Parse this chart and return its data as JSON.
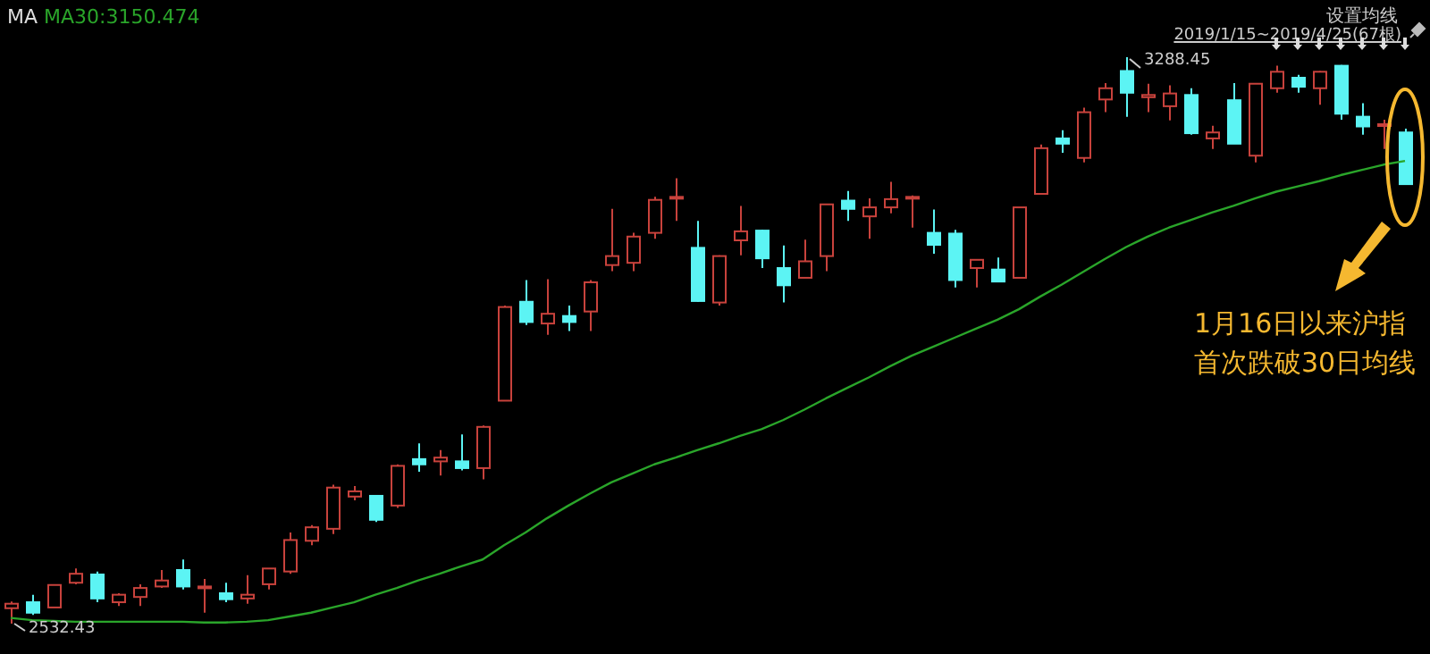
{
  "chart_data": {
    "type": "candlestick",
    "categories": [
      null,
      null,
      null,
      null,
      null,
      null,
      null,
      null,
      null,
      null,
      null,
      null,
      null,
      null,
      null,
      null,
      null,
      null,
      null,
      null,
      null,
      null,
      null,
      null,
      null,
      null,
      null,
      null,
      null,
      null,
      null,
      null,
      null,
      null,
      null,
      null,
      null,
      null,
      null,
      null,
      null,
      null,
      null,
      null,
      null,
      null,
      null,
      null,
      null,
      null,
      null,
      null,
      null,
      null,
      null,
      null,
      null,
      null,
      null,
      null,
      null,
      null,
      null,
      null,
      null,
      null
    ],
    "ohlc": [
      [
        2553,
        2562,
        2532.43,
        2559
      ],
      [
        2561,
        2571,
        2544,
        2547
      ],
      [
        2554,
        2585,
        2554,
        2584
      ],
      [
        2587,
        2606,
        2585,
        2599
      ],
      [
        2598,
        2602,
        2561,
        2566
      ],
      [
        2561,
        2573,
        2556,
        2571
      ],
      [
        2568,
        2585,
        2556,
        2580
      ],
      [
        2582,
        2604,
        2580,
        2590
      ],
      [
        2604,
        2618,
        2578,
        2582
      ],
      [
        2580,
        2592,
        2547,
        2582
      ],
      [
        2573,
        2587,
        2561,
        2565
      ],
      [
        2566,
        2597,
        2559,
        2571
      ],
      [
        2585,
        2606,
        2578,
        2606
      ],
      [
        2602,
        2654,
        2599,
        2644
      ],
      [
        2643,
        2664,
        2637,
        2661
      ],
      [
        2659,
        2718,
        2652,
        2714
      ],
      [
        2702,
        2716,
        2697,
        2709
      ],
      [
        2703,
        2704,
        2668,
        2671
      ],
      [
        2690,
        2745,
        2687,
        2743
      ],
      [
        2752,
        2773,
        2735,
        2745
      ],
      [
        2749,
        2764,
        2730,
        2754
      ],
      [
        2749,
        2785,
        2737,
        2740
      ],
      [
        2740,
        2797,
        2725,
        2795
      ],
      [
        2830,
        2957,
        2830,
        2955
      ],
      [
        2962,
        2991,
        2931,
        2935
      ],
      [
        2933,
        2992,
        2918,
        2946
      ],
      [
        2943,
        2957,
        2923,
        2935
      ],
      [
        2949,
        2991,
        2923,
        2988
      ],
      [
        3011,
        3086,
        3003,
        3023
      ],
      [
        3014,
        3054,
        3003,
        3049
      ],
      [
        3054,
        3102,
        3046,
        3098
      ],
      [
        3100,
        3127,
        3070,
        3102
      ],
      [
        3034,
        3070,
        2962,
        2963
      ],
      [
        2961,
        3024,
        2957,
        3023
      ],
      [
        3044,
        3090,
        3024,
        3056
      ],
      [
        3057,
        3058,
        3007,
        3020
      ],
      [
        3007,
        3037,
        2961,
        2984
      ],
      [
        2994,
        3045,
        2994,
        3016
      ],
      [
        3023,
        3092,
        3003,
        3092
      ],
      [
        3097,
        3110,
        3070,
        3086
      ],
      [
        3076,
        3100,
        3046,
        3088
      ],
      [
        3088,
        3122,
        3080,
        3099
      ],
      [
        3100,
        3104,
        3061,
        3102
      ],
      [
        3054,
        3085,
        3026,
        3038
      ],
      [
        3053,
        3058,
        2981,
        2991
      ],
      [
        3007,
        3019,
        2981,
        3018
      ],
      [
        3005,
        3021,
        2989,
        2989
      ],
      [
        2994,
        3088,
        2994,
        3088
      ],
      [
        3106,
        3172,
        3106,
        3167
      ],
      [
        3180,
        3191,
        3161,
        3173
      ],
      [
        3154,
        3221,
        3148,
        3215
      ],
      [
        3232,
        3254,
        3215,
        3247
      ],
      [
        3270,
        3288.45,
        3209,
        3241
      ],
      [
        3235,
        3253,
        3215,
        3238
      ],
      [
        3223,
        3251,
        3204,
        3240
      ],
      [
        3238,
        3247,
        3185,
        3187
      ],
      [
        3180,
        3197,
        3166,
        3188
      ],
      [
        3231,
        3254,
        3173,
        3173
      ],
      [
        3157,
        3254,
        3148,
        3253
      ],
      [
        3247,
        3277,
        3241,
        3269
      ],
      [
        3261,
        3265,
        3241,
        3249
      ],
      [
        3247,
        3270,
        3225,
        3269
      ],
      [
        3277,
        3278,
        3205,
        3213
      ],
      [
        3209,
        3227,
        3185,
        3196
      ],
      [
        3197,
        3205,
        3166,
        3199
      ],
      [
        3188,
        3193,
        3119,
        3119
      ]
    ],
    "colors": [
      "#c8423c",
      "#5cf4f4",
      "#c8423c",
      "#c8423c",
      "#5cf4f4",
      "#c8423c",
      "#c8423c",
      "#c8423c",
      "#5cf4f4",
      "#c8423c",
      "#5cf4f4",
      "#c8423c",
      "#c8423c",
      "#c8423c",
      "#c8423c",
      "#c8423c",
      "#c8423c",
      "#5cf4f4",
      "#c8423c",
      "#5cf4f4",
      "#c8423c",
      "#5cf4f4",
      "#c8423c",
      "#c8423c",
      "#5cf4f4",
      "#c8423c",
      "#5cf4f4",
      "#c8423c",
      "#c8423c",
      "#c8423c",
      "#c8423c",
      "#c8423c",
      "#5cf4f4",
      "#c8423c",
      "#c8423c",
      "#5cf4f4",
      "#5cf4f4",
      "#c8423c",
      "#c8423c",
      "#5cf4f4",
      "#c8423c",
      "#c8423c",
      "#c8423c",
      "#5cf4f4",
      "#5cf4f4",
      "#c8423c",
      "#5cf4f4",
      "#c8423c",
      "#c8423c",
      "#5cf4f4",
      "#c8423c",
      "#c8423c",
      "#5cf4f4",
      "#c8423c",
      "#c8423c",
      "#5cf4f4",
      "#c8423c",
      "#5cf4f4",
      "#c8423c",
      "#c8423c",
      "#5cf4f4",
      "#c8423c",
      "#5cf4f4",
      "#5cf4f4",
      "#c8423c",
      "#5cf4f4"
    ],
    "series": [
      {
        "type": "line",
        "color": "#2aa52a",
        "values": [
          2540,
          2537,
          2536,
          2535,
          2535,
          2535,
          2535,
          2535,
          2535,
          2534,
          2534,
          2535,
          2537,
          2542,
          2547,
          2554,
          2561,
          2571,
          2580,
          2590,
          2599,
          2609,
          2618,
          2637,
          2654,
          2673,
          2690,
          2706,
          2721,
          2733,
          2745,
          2754,
          2764,
          2773,
          2783,
          2792,
          2804,
          2818,
          2833,
          2847,
          2861,
          2876,
          2890,
          2902,
          2914,
          2926,
          2938,
          2952,
          2969,
          2985,
          3002,
          3019,
          3035,
          3049,
          3061,
          3071,
          3081,
          3090,
          3100,
          3109,
          3116,
          3123,
          3131,
          3138,
          3145,
          3150
        ]
      }
    ],
    "annotations": [
      "MA MA30:3150.474",
      "设置均线",
      "2019/1/15~2019/4/25(67根)",
      "1月16日以来沪指",
      "首次跌破30日均线",
      "3288.45",
      "2532.43"
    ]
  }
}
